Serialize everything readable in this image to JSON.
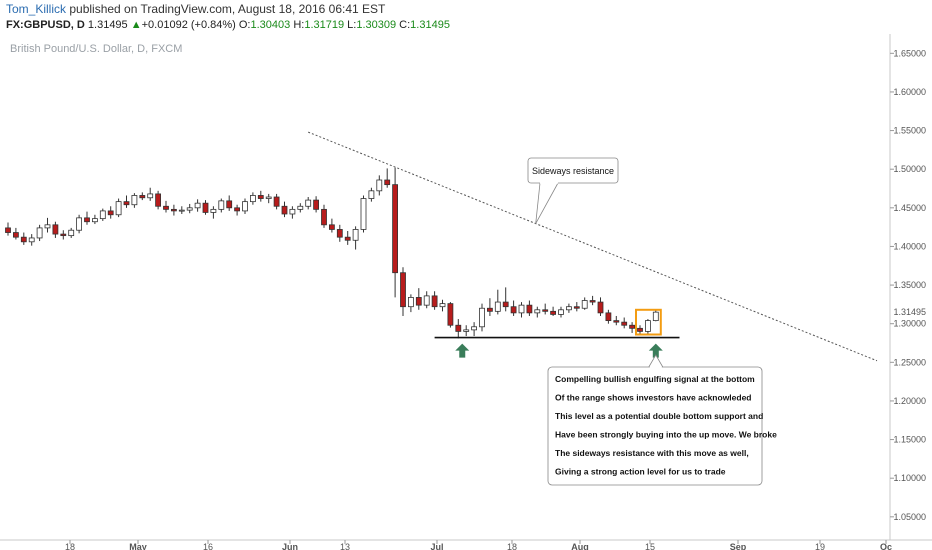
{
  "header": {
    "author": "Tom_Killick",
    "published_text": " published on TradingView.com, August 18, 2016 06:41 EST",
    "symbol": "FX:GBPUSD, D",
    "last": "1.31495",
    "arrow": "▲",
    "change": "+0.01092 (+0.84%)",
    "o_label": "O:",
    "o_value": "1.30403",
    "h_label": "H:",
    "h_value": "1.31719",
    "l_label": "L:",
    "l_value": "1.30309",
    "c_label": "C:",
    "c_value": "1.31495"
  },
  "colors": {
    "bull_fill": "#ffffff",
    "bear_fill": "#b71c1c",
    "candle_outline": "#333333",
    "arrow_green": "#3a7d5a",
    "highlight_box": "#f39c12"
  },
  "chart_data": {
    "type": "candlestick",
    "title": "British Pound/U.S. Dollar, D, FXCM",
    "ylim": [
      1.02,
      1.675
    ],
    "y_ticks": [
      "1.65000",
      "1.60000",
      "1.55000",
      "1.50000",
      "1.45000",
      "1.40000",
      "1.35000",
      "1.30000",
      "1.25000",
      "1.20000",
      "1.15000",
      "1.10000",
      "1.05000"
    ],
    "last_price_label": "1.31495",
    "x_ticks": [
      {
        "label": "18",
        "month": false
      },
      {
        "label": "May",
        "month": true
      },
      {
        "label": "16",
        "month": false
      },
      {
        "label": "Jun",
        "month": true
      },
      {
        "label": "13",
        "month": false
      },
      {
        "label": "Jul",
        "month": true
      },
      {
        "label": "18",
        "month": false
      },
      {
        "label": "Aug",
        "month": true
      },
      {
        "label": "15",
        "month": false
      },
      {
        "label": "Sep",
        "month": true
      },
      {
        "label": "19",
        "month": false
      },
      {
        "label": "Oc",
        "month": true
      }
    ],
    "candles": [
      {
        "o": 1.424,
        "h": 1.431,
        "l": 1.414,
        "c": 1.418
      },
      {
        "o": 1.418,
        "h": 1.424,
        "l": 1.409,
        "c": 1.412
      },
      {
        "o": 1.412,
        "h": 1.418,
        "l": 1.402,
        "c": 1.406
      },
      {
        "o": 1.406,
        "h": 1.416,
        "l": 1.401,
        "c": 1.411
      },
      {
        "o": 1.411,
        "h": 1.428,
        "l": 1.407,
        "c": 1.424
      },
      {
        "o": 1.424,
        "h": 1.437,
        "l": 1.418,
        "c": 1.428
      },
      {
        "o": 1.428,
        "h": 1.432,
        "l": 1.411,
        "c": 1.416
      },
      {
        "o": 1.416,
        "h": 1.421,
        "l": 1.409,
        "c": 1.414
      },
      {
        "o": 1.414,
        "h": 1.424,
        "l": 1.411,
        "c": 1.421
      },
      {
        "o": 1.421,
        "h": 1.441,
        "l": 1.417,
        "c": 1.437
      },
      {
        "o": 1.437,
        "h": 1.445,
        "l": 1.428,
        "c": 1.432
      },
      {
        "o": 1.432,
        "h": 1.441,
        "l": 1.429,
        "c": 1.436
      },
      {
        "o": 1.436,
        "h": 1.449,
        "l": 1.433,
        "c": 1.446
      },
      {
        "o": 1.446,
        "h": 1.452,
        "l": 1.436,
        "c": 1.441
      },
      {
        "o": 1.441,
        "h": 1.462,
        "l": 1.438,
        "c": 1.458
      },
      {
        "o": 1.458,
        "h": 1.466,
        "l": 1.45,
        "c": 1.454
      },
      {
        "o": 1.454,
        "h": 1.469,
        "l": 1.45,
        "c": 1.466
      },
      {
        "o": 1.466,
        "h": 1.47,
        "l": 1.46,
        "c": 1.463
      },
      {
        "o": 1.463,
        "h": 1.476,
        "l": 1.459,
        "c": 1.468
      },
      {
        "o": 1.468,
        "h": 1.472,
        "l": 1.448,
        "c": 1.452
      },
      {
        "o": 1.452,
        "h": 1.459,
        "l": 1.444,
        "c": 1.448
      },
      {
        "o": 1.448,
        "h": 1.454,
        "l": 1.44,
        "c": 1.446
      },
      {
        "o": 1.446,
        "h": 1.452,
        "l": 1.442,
        "c": 1.447
      },
      {
        "o": 1.447,
        "h": 1.455,
        "l": 1.443,
        "c": 1.45
      },
      {
        "o": 1.45,
        "h": 1.461,
        "l": 1.445,
        "c": 1.456
      },
      {
        "o": 1.456,
        "h": 1.46,
        "l": 1.441,
        "c": 1.444
      },
      {
        "o": 1.444,
        "h": 1.452,
        "l": 1.436,
        "c": 1.448
      },
      {
        "o": 1.448,
        "h": 1.462,
        "l": 1.444,
        "c": 1.459
      },
      {
        "o": 1.459,
        "h": 1.466,
        "l": 1.446,
        "c": 1.45
      },
      {
        "o": 1.45,
        "h": 1.454,
        "l": 1.44,
        "c": 1.446
      },
      {
        "o": 1.446,
        "h": 1.462,
        "l": 1.442,
        "c": 1.458
      },
      {
        "o": 1.458,
        "h": 1.47,
        "l": 1.454,
        "c": 1.466
      },
      {
        "o": 1.466,
        "h": 1.472,
        "l": 1.458,
        "c": 1.462
      },
      {
        "o": 1.462,
        "h": 1.468,
        "l": 1.456,
        "c": 1.464
      },
      {
        "o": 1.464,
        "h": 1.468,
        "l": 1.448,
        "c": 1.452
      },
      {
        "o": 1.452,
        "h": 1.458,
        "l": 1.438,
        "c": 1.442
      },
      {
        "o": 1.442,
        "h": 1.452,
        "l": 1.436,
        "c": 1.448
      },
      {
        "o": 1.448,
        "h": 1.456,
        "l": 1.444,
        "c": 1.452
      },
      {
        "o": 1.452,
        "h": 1.464,
        "l": 1.448,
        "c": 1.46
      },
      {
        "o": 1.46,
        "h": 1.465,
        "l": 1.444,
        "c": 1.448
      },
      {
        "o": 1.448,
        "h": 1.454,
        "l": 1.424,
        "c": 1.428
      },
      {
        "o": 1.428,
        "h": 1.436,
        "l": 1.418,
        "c": 1.422
      },
      {
        "o": 1.422,
        "h": 1.428,
        "l": 1.406,
        "c": 1.412
      },
      {
        "o": 1.412,
        "h": 1.42,
        "l": 1.402,
        "c": 1.408
      },
      {
        "o": 1.408,
        "h": 1.426,
        "l": 1.396,
        "c": 1.422
      },
      {
        "o": 1.422,
        "h": 1.466,
        "l": 1.418,
        "c": 1.462
      },
      {
        "o": 1.462,
        "h": 1.476,
        "l": 1.458,
        "c": 1.472
      },
      {
        "o": 1.472,
        "h": 1.492,
        "l": 1.466,
        "c": 1.486
      },
      {
        "o": 1.486,
        "h": 1.501,
        "l": 1.476,
        "c": 1.48
      },
      {
        "o": 1.48,
        "h": 1.502,
        "l": 1.334,
        "c": 1.366
      },
      {
        "o": 1.366,
        "h": 1.373,
        "l": 1.31,
        "c": 1.322
      },
      {
        "o": 1.322,
        "h": 1.338,
        "l": 1.315,
        "c": 1.334
      },
      {
        "o": 1.334,
        "h": 1.346,
        "l": 1.318,
        "c": 1.324
      },
      {
        "o": 1.324,
        "h": 1.342,
        "l": 1.32,
        "c": 1.336
      },
      {
        "o": 1.336,
        "h": 1.342,
        "l": 1.318,
        "c": 1.322
      },
      {
        "o": 1.322,
        "h": 1.331,
        "l": 1.316,
        "c": 1.326
      },
      {
        "o": 1.326,
        "h": 1.328,
        "l": 1.295,
        "c": 1.298
      },
      {
        "o": 1.298,
        "h": 1.306,
        "l": 1.281,
        "c": 1.29
      },
      {
        "o": 1.29,
        "h": 1.298,
        "l": 1.284,
        "c": 1.292
      },
      {
        "o": 1.292,
        "h": 1.302,
        "l": 1.284,
        "c": 1.296
      },
      {
        "o": 1.296,
        "h": 1.326,
        "l": 1.29,
        "c": 1.32
      },
      {
        "o": 1.32,
        "h": 1.333,
        "l": 1.31,
        "c": 1.316
      },
      {
        "o": 1.316,
        "h": 1.344,
        "l": 1.312,
        "c": 1.328
      },
      {
        "o": 1.328,
        "h": 1.347,
        "l": 1.316,
        "c": 1.322
      },
      {
        "o": 1.322,
        "h": 1.33,
        "l": 1.31,
        "c": 1.314
      },
      {
        "o": 1.314,
        "h": 1.328,
        "l": 1.308,
        "c": 1.324
      },
      {
        "o": 1.324,
        "h": 1.33,
        "l": 1.31,
        "c": 1.314
      },
      {
        "o": 1.314,
        "h": 1.322,
        "l": 1.308,
        "c": 1.318
      },
      {
        "o": 1.318,
        "h": 1.326,
        "l": 1.312,
        "c": 1.316
      },
      {
        "o": 1.316,
        "h": 1.322,
        "l": 1.31,
        "c": 1.312
      },
      {
        "o": 1.312,
        "h": 1.322,
        "l": 1.308,
        "c": 1.318
      },
      {
        "o": 1.318,
        "h": 1.326,
        "l": 1.314,
        "c": 1.322
      },
      {
        "o": 1.322,
        "h": 1.328,
        "l": 1.316,
        "c": 1.32
      },
      {
        "o": 1.32,
        "h": 1.334,
        "l": 1.318,
        "c": 1.33
      },
      {
        "o": 1.33,
        "h": 1.336,
        "l": 1.324,
        "c": 1.328
      },
      {
        "o": 1.328,
        "h": 1.334,
        "l": 1.31,
        "c": 1.314
      },
      {
        "o": 1.314,
        "h": 1.318,
        "l": 1.3,
        "c": 1.304
      },
      {
        "o": 1.304,
        "h": 1.31,
        "l": 1.298,
        "c": 1.302
      },
      {
        "o": 1.302,
        "h": 1.308,
        "l": 1.294,
        "c": 1.298
      },
      {
        "o": 1.298,
        "h": 1.302,
        "l": 1.288,
        "c": 1.294
      },
      {
        "o": 1.294,
        "h": 1.298,
        "l": 1.286,
        "c": 1.29
      },
      {
        "o": 1.29,
        "h": 1.306,
        "l": 1.286,
        "c": 1.304
      },
      {
        "o": 1.304,
        "h": 1.3172,
        "l": 1.3031,
        "c": 1.31495
      }
    ],
    "annotations": {
      "sideways_label": "Sideways resistance",
      "note_lines": [
        "Compelling bullish engulfing signal at the bottom",
        "Of the range shows investors have acknowleded",
        "This level as a potential double bottom support and",
        "Have been strongly buying into the up move. We broke",
        "The sideways resistance with this move as well,",
        "Giving a strong action level for us to trade"
      ],
      "trendline": {
        "start_index": 38,
        "start_price": 1.548,
        "end_index": 110,
        "end_price": 1.252
      },
      "support_level": 1.282
    }
  }
}
